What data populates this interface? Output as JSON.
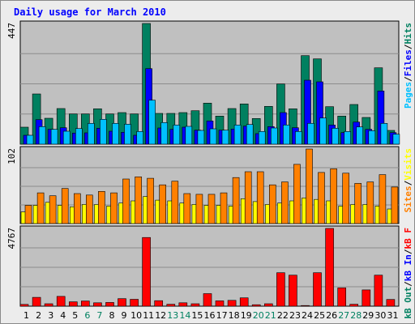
{
  "chart_data": {
    "type": "bar",
    "title": "Daily usage for March 2010",
    "categories": [
      "1",
      "2",
      "3",
      "4",
      "5",
      "6",
      "7",
      "8",
      "9",
      "10",
      "11",
      "12",
      "13",
      "14",
      "15",
      "16",
      "17",
      "18",
      "19",
      "20",
      "21",
      "22",
      "23",
      "24",
      "25",
      "26",
      "27",
      "28",
      "29",
      "30",
      "31"
    ],
    "weekend_days": [
      "6",
      "7",
      "13",
      "14",
      "20",
      "21",
      "27",
      "28"
    ],
    "panels": [
      {
        "name": "hits-files-pages",
        "ymax": 447,
        "ymax_label": "447",
        "axis_labels": [
          "Hits",
          "/",
          "Files",
          "/",
          "Pages"
        ],
        "series": [
          {
            "name": "Hits",
            "color": "#008060",
            "values": [
              63,
              186,
              96,
              132,
              112,
              112,
              131,
              112,
              117,
              112,
              447,
              114,
              114,
              117,
              124,
              152,
              104,
              132,
              149,
              95,
              140,
              223,
              131,
              328,
              316,
              139,
              104,
              147,
              99,
              283,
              51
            ]
          },
          {
            "name": "Files",
            "color": "#0000ff",
            "values": [
              33,
              91,
              55,
              61,
              41,
              42,
              59,
              48,
              44,
              33,
              280,
              60,
              55,
              63,
              52,
              86,
              52,
              56,
              67,
              39,
              65,
              117,
              61,
              237,
              231,
              71,
              43,
              82,
              55,
              197,
              43
            ]
          },
          {
            "name": "Pages",
            "color": "#00c0ff",
            "values": [
              33,
              65,
              55,
              48,
              58,
              77,
              92,
              77,
              74,
              47,
              163,
              80,
              71,
              66,
              51,
              57,
              52,
              71,
              73,
              47,
              60,
              71,
              47,
              77,
              97,
              59,
              47,
              64,
              50,
              77,
              37
            ]
          }
        ]
      },
      {
        "name": "visits-sites",
        "ymax": 102,
        "ymax_label": "102",
        "axis_labels": [
          "Visits",
          "/",
          "Sites"
        ],
        "series": [
          {
            "name": "Visits",
            "color": "#ffff00",
            "values": [
              16,
              25,
              29,
              25,
              23,
              26,
              26,
              24,
              28,
              31,
              37,
              32,
              31,
              28,
              26,
              25,
              25,
              24,
              34,
              30,
              26,
              28,
              31,
              35,
              33,
              31,
              24,
              26,
              26,
              24,
              20
            ]
          },
          {
            "name": "Sites",
            "color": "#ff8000",
            "values": [
              25,
              42,
              38,
              48,
              41,
              39,
              44,
              42,
              61,
              64,
              62,
              53,
              58,
              41,
              40,
              40,
              42,
              63,
              71,
              71,
              53,
              57,
              81,
              102,
              70,
              75,
              69,
              55,
              57,
              67,
              50
            ]
          }
        ]
      },
      {
        "name": "kbytes",
        "ymax": 4767,
        "ymax_label": "4767",
        "axis_labels": [
          "kB F",
          "/",
          "kB In",
          "/",
          "kB Out"
        ],
        "series": [
          {
            "name": "kB F",
            "color": "#ff0000",
            "values": [
              110,
              540,
              150,
              600,
              270,
              320,
              210,
              230,
              460,
              420,
              4210,
              340,
              120,
              210,
              150,
              770,
              330,
              360,
              510,
              90,
              150,
              2050,
              1900,
              40,
              2050,
              4767,
              1120,
              120,
              1000,
              1900,
              410
            ]
          },
          {
            "name": "kB In",
            "color": "#0000ff",
            "values": [
              0,
              0,
              0,
              0,
              0,
              0,
              0,
              0,
              0,
              0,
              0,
              0,
              0,
              0,
              0,
              0,
              0,
              0,
              0,
              0,
              0,
              0,
              0,
              0,
              0,
              0,
              0,
              0,
              0,
              0,
              0
            ]
          },
          {
            "name": "kB Out",
            "color": "#008060",
            "values": [
              0,
              0,
              0,
              0,
              0,
              0,
              0,
              0,
              0,
              0,
              0,
              0,
              0,
              0,
              0,
              0,
              0,
              0,
              0,
              0,
              0,
              0,
              0,
              0,
              0,
              0,
              0,
              0,
              0,
              0,
              0
            ]
          }
        ]
      }
    ],
    "grid": true,
    "colors": {
      "background": "#c0c0c0",
      "weekday": "#000000",
      "weekend": "#008060",
      "title": "#0000ff"
    }
  }
}
